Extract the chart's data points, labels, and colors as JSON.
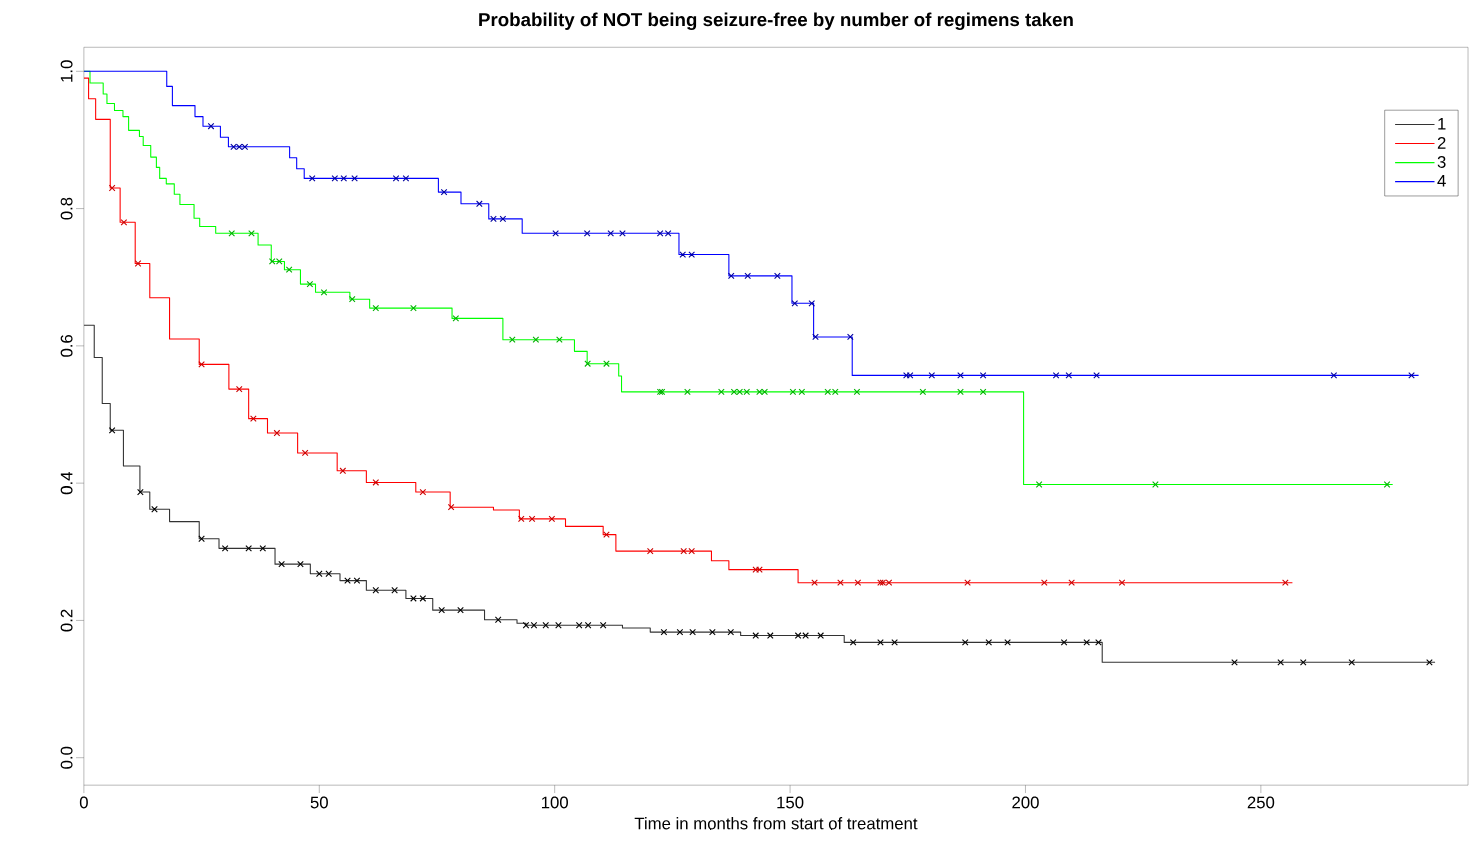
{
  "chart_data": {
    "type": "step",
    "title": "Probability of NOT being seizure-free by number of regimens taken",
    "xlabel": "Time in months from start of treatment",
    "xlim": [
      0,
      294
    ],
    "ylim": [
      -0.04,
      1.035
    ],
    "xticks": [
      0,
      50,
      100,
      150,
      200,
      250
    ],
    "yticks": [
      {
        "value": 0,
        "label": "0.0"
      },
      {
        "value": 0.2,
        "label": "0.2"
      },
      {
        "value": 0.4,
        "label": "0.4"
      },
      {
        "value": 0.6,
        "label": "0.6"
      },
      {
        "value": 0.8,
        "label": "0.8"
      },
      {
        "value": 1,
        "label": "1.0"
      }
    ],
    "legend": "top right",
    "series": [
      {
        "name": "1",
        "color": "#333333",
        "x": [
          0,
          2.2,
          3.9,
          5.6,
          8.4,
          11.9,
          14,
          18.2,
          24.5,
          28.7,
          40.6,
          48.1,
          54.4,
          60,
          68.4,
          74.1,
          85.1,
          92,
          93.9,
          114.4,
          120.3,
          139.5,
          161.5,
          216.3,
          287
        ],
        "values": [
          0.63,
          0.583,
          0.516,
          0.477,
          0.425,
          0.387,
          0.362,
          0.344,
          0.319,
          0.305,
          0.282,
          0.268,
          0.258,
          0.244,
          0.232,
          0.215,
          0.201,
          0.196,
          0.193,
          0.189,
          0.183,
          0.178,
          0.168,
          0.139,
          0.139
        ]
      },
      {
        "name": "2",
        "color": "#ff0000",
        "x": [
          0,
          1,
          2.5,
          5.6,
          7.7,
          10.9,
          14,
          18.2,
          24.5,
          30.8,
          35,
          39,
          45.4,
          53.8,
          60,
          70.5,
          77.8,
          87,
          92.5,
          102.3,
          110.3,
          113,
          133.3,
          137,
          151.7,
          256.7
        ],
        "values": [
          0.99,
          0.96,
          0.93,
          0.83,
          0.78,
          0.72,
          0.67,
          0.61,
          0.573,
          0.537,
          0.494,
          0.473,
          0.444,
          0.418,
          0.401,
          0.387,
          0.365,
          0.361,
          0.348,
          0.337,
          0.325,
          0.301,
          0.287,
          0.274,
          0.255,
          0.255
        ]
      },
      {
        "name": "3",
        "color": "#00ff00",
        "x": [
          0,
          1.3,
          4.1,
          4.9,
          6.5,
          8.3,
          9.5,
          11.8,
          12.6,
          14.2,
          15.4,
          16.1,
          17.5,
          19.2,
          20.4,
          23.4,
          24.6,
          28,
          37,
          39.8,
          42.6,
          46,
          49.2,
          56.5,
          60.7,
          78.2,
          89,
          104.2,
          106.9,
          113.6,
          114.2,
          199.6,
          278
        ],
        "values": [
          1,
          0.983,
          0.967,
          0.953,
          0.943,
          0.934,
          0.914,
          0.905,
          0.892,
          0.875,
          0.86,
          0.844,
          0.836,
          0.821,
          0.806,
          0.786,
          0.774,
          0.764,
          0.747,
          0.723,
          0.711,
          0.69,
          0.678,
          0.668,
          0.655,
          0.64,
          0.609,
          0.592,
          0.574,
          0.556,
          0.533,
          0.398,
          0.398
        ]
      },
      {
        "name": "4",
        "color": "#0000ff",
        "x": [
          0,
          17.6,
          18.8,
          23.6,
          25.3,
          29,
          30.7,
          43.7,
          45.2,
          46.8,
          75.3,
          80.1,
          86,
          93.1,
          126.4,
          137,
          150.4,
          155,
          163.2,
          283.5
        ],
        "values": [
          1,
          0.978,
          0.95,
          0.934,
          0.92,
          0.904,
          0.89,
          0.874,
          0.858,
          0.844,
          0.824,
          0.807,
          0.785,
          0.764,
          0.733,
          0.702,
          0.662,
          0.613,
          0.557,
          0.557
        ]
      },
      {
        "type": "scatter",
        "marker": "cross",
        "color": "#000000",
        "x": [
          6,
          12,
          15,
          25,
          30,
          35,
          38,
          42,
          46,
          50,
          52,
          56,
          58,
          62,
          66,
          70,
          72,
          76,
          80,
          88,
          93.9,
          95.6,
          98.1,
          100.8,
          105.2,
          107.1,
          110.3,
          123.2,
          126.6,
          129.3,
          133.5,
          137.4,
          142.7,
          145.8,
          151.7,
          153.3,
          156.5,
          163.4,
          169.2,
          172.2,
          187.2,
          192.2,
          196.2,
          208.2,
          213,
          215.5,
          244.4,
          254.2,
          259,
          269.3,
          285.8
        ],
        "values": [
          0.477,
          0.387,
          0.362,
          0.319,
          0.305,
          0.305,
          0.305,
          0.282,
          0.282,
          0.268,
          0.268,
          0.258,
          0.258,
          0.244,
          0.244,
          0.232,
          0.232,
          0.215,
          0.215,
          0.201,
          0.193,
          0.193,
          0.193,
          0.193,
          0.193,
          0.193,
          0.193,
          0.183,
          0.183,
          0.183,
          0.183,
          0.183,
          0.178,
          0.178,
          0.178,
          0.178,
          0.178,
          0.168,
          0.168,
          0.168,
          0.168,
          0.168,
          0.168,
          0.168,
          0.168,
          0.168,
          0.139,
          0.139,
          0.139,
          0.139,
          0.139
        ]
      },
      {
        "type": "scatter",
        "marker": "cross",
        "color": "#cc0000",
        "x": [
          6,
          8.5,
          11.5,
          25,
          33,
          36,
          41,
          47,
          55,
          62,
          72,
          78,
          92.9,
          95.2,
          99.4,
          111,
          120.3,
          127.4,
          129.1,
          142.7,
          143.5,
          155.2,
          160.7,
          164.4,
          169.2,
          169.7,
          171,
          187.7,
          204,
          209.8,
          220.5,
          255.2
        ],
        "values": [
          0.83,
          0.78,
          0.72,
          0.573,
          0.537,
          0.494,
          0.473,
          0.444,
          0.418,
          0.401,
          0.387,
          0.365,
          0.348,
          0.348,
          0.348,
          0.325,
          0.301,
          0.301,
          0.301,
          0.274,
          0.274,
          0.255,
          0.255,
          0.255,
          0.255,
          0.255,
          0.255,
          0.255,
          0.255,
          0.255,
          0.255,
          0.255
        ]
      },
      {
        "type": "scatter",
        "marker": "cross",
        "color": "#00b000",
        "x": [
          31.4,
          35.6,
          40,
          41.5,
          43.6,
          48,
          51,
          57,
          62,
          70,
          79,
          91,
          96,
          101,
          107,
          111,
          122.4,
          122.8,
          128.2,
          135.4,
          138.1,
          139.3,
          140.8,
          143.5,
          144.6,
          150.6,
          152.5,
          158,
          159.6,
          164.2,
          178.2,
          186.2,
          191,
          202.9,
          227.6,
          276.8
        ],
        "values": [
          0.764,
          0.764,
          0.723,
          0.723,
          0.711,
          0.69,
          0.678,
          0.668,
          0.655,
          0.655,
          0.64,
          0.609,
          0.609,
          0.609,
          0.574,
          0.574,
          0.533,
          0.533,
          0.533,
          0.533,
          0.533,
          0.533,
          0.533,
          0.533,
          0.533,
          0.533,
          0.533,
          0.533,
          0.533,
          0.533,
          0.533,
          0.533,
          0.533,
          0.398,
          0.398,
          0.398
        ]
      },
      {
        "type": "scatter",
        "marker": "cross",
        "color": "#0000a0",
        "x": [
          27,
          31.8,
          33,
          34.2,
          48.5,
          53.3,
          55.2,
          57.5,
          66.3,
          68.4,
          76.5,
          84,
          87,
          89,
          100.2,
          106.9,
          111.9,
          114.4,
          122.4,
          124.1,
          127.2,
          129.1,
          137.5,
          141,
          147.3,
          151,
          154.6,
          155.4,
          162.8,
          174.7,
          175.5,
          180.1,
          186.2,
          191,
          206.5,
          209.2,
          215.1,
          265.5,
          282
        ],
        "values": [
          0.92,
          0.89,
          0.89,
          0.89,
          0.844,
          0.844,
          0.844,
          0.844,
          0.844,
          0.844,
          0.824,
          0.807,
          0.785,
          0.785,
          0.764,
          0.764,
          0.764,
          0.764,
          0.764,
          0.764,
          0.733,
          0.733,
          0.702,
          0.702,
          0.702,
          0.662,
          0.662,
          0.613,
          0.613,
          0.557,
          0.557,
          0.557,
          0.557,
          0.557,
          0.557,
          0.557,
          0.557,
          0.557,
          0.557
        ]
      }
    ]
  }
}
